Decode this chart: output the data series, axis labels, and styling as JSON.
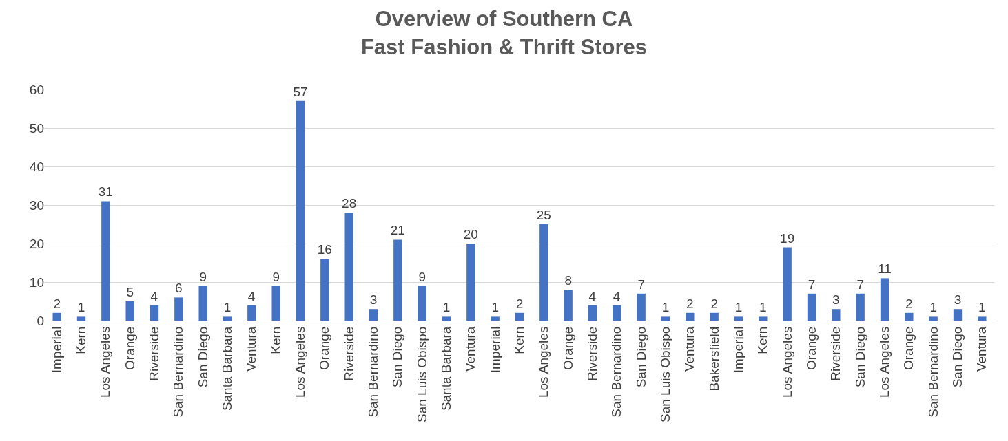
{
  "chart_data": {
    "type": "bar",
    "title": "Overview of Southern CA\nFast Fashion & Thrift Stores",
    "categories": [
      "Imperial",
      "Kern",
      "Los Angeles",
      "Orange",
      "Riverside",
      "San Bernardino",
      "San Diego",
      "Santa Barbara",
      "Ventura",
      "Kern",
      "Los Angeles",
      "Orange",
      "Riverside",
      "San Bernardino",
      "San Diego",
      "San Luis Obispo",
      "Santa Barbara",
      "Ventura",
      "Imperial",
      "Kern",
      "Los Angeles",
      "Orange",
      "Riverside",
      "San Bernardino",
      "San Diego",
      "San Luis Obispo",
      "Ventura",
      "Bakersfield",
      "Imperial",
      "Kern",
      "Los Angeles",
      "Orange",
      "Riverside",
      "San Diego",
      "Los Angeles",
      "Orange",
      "San Bernardino",
      "San Diego",
      "Ventura"
    ],
    "values": [
      2,
      1,
      31,
      5,
      4,
      6,
      9,
      1,
      4,
      9,
      57,
      16,
      28,
      3,
      21,
      9,
      1,
      20,
      1,
      2,
      25,
      8,
      4,
      4,
      7,
      1,
      2,
      2,
      1,
      1,
      19,
      7,
      3,
      7,
      11,
      2,
      1,
      3,
      1
    ],
    "color": "#4472c4",
    "ylim": [
      0,
      60
    ],
    "yticks": [
      0,
      10,
      20,
      30,
      40,
      50,
      60
    ],
    "grid": "y",
    "data_labels": true,
    "legend": false
  }
}
